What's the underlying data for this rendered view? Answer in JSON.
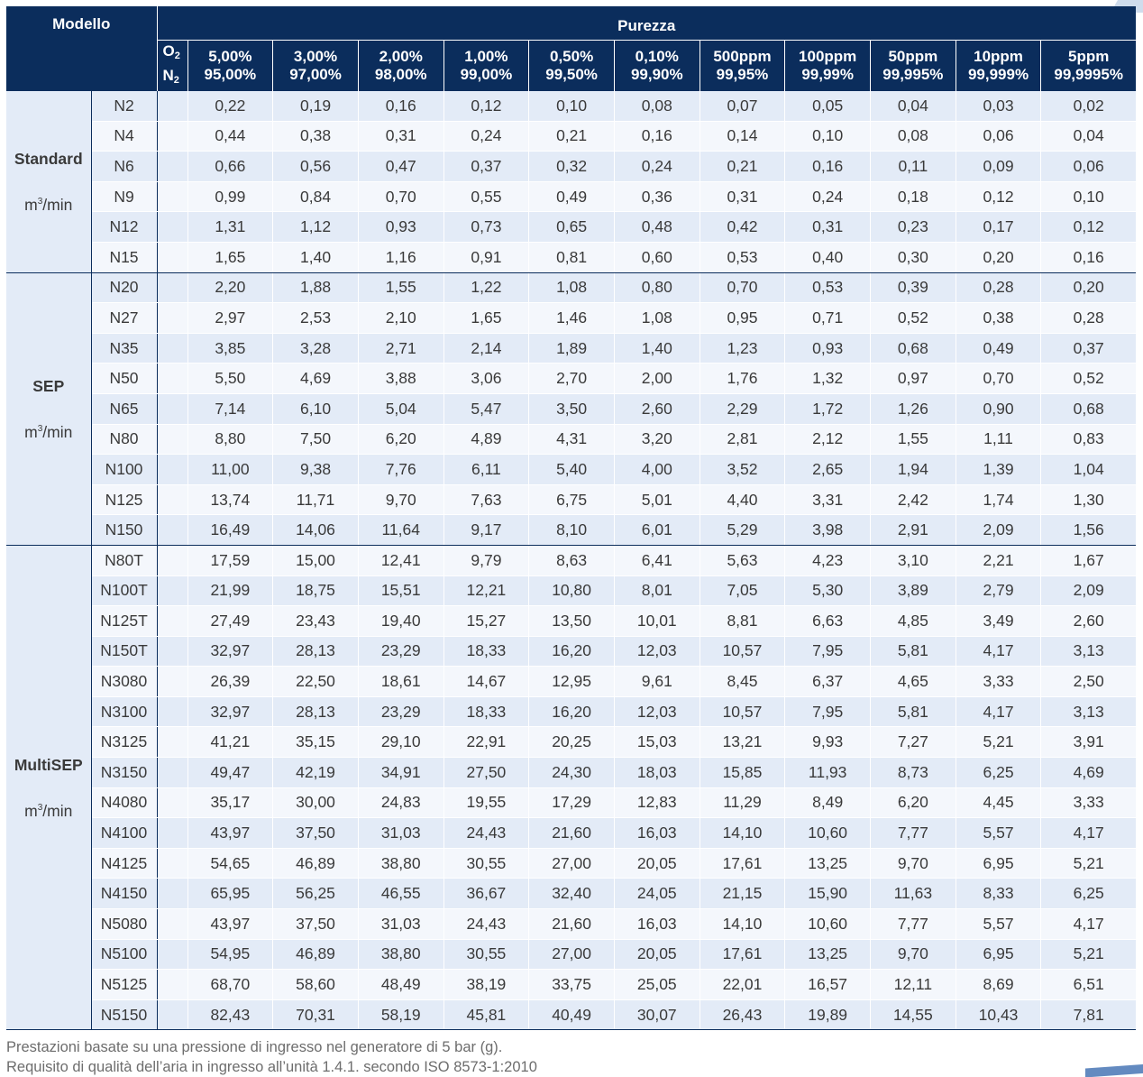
{
  "header": {
    "modello": "Modello",
    "purezza": "Purezza",
    "o2_label": "O",
    "o2_sub": "2",
    "n2_label": "N",
    "n2_sub": "2",
    "columns": [
      {
        "top": "5,00%",
        "bottom": "95,00%"
      },
      {
        "top": "3,00%",
        "bottom": "97,00%"
      },
      {
        "top": "2,00%",
        "bottom": "98,00%"
      },
      {
        "top": "1,00%",
        "bottom": "99,00%"
      },
      {
        "top": "0,50%",
        "bottom": "99,50%"
      },
      {
        "top": "0,10%",
        "bottom": "99,90%"
      },
      {
        "top": "500ppm",
        "bottom": "99,95%"
      },
      {
        "top": "100ppm",
        "bottom": "99,99%"
      },
      {
        "top": "50ppm",
        "bottom": "99,995%"
      },
      {
        "top": "10ppm",
        "bottom": "99,999%"
      },
      {
        "top": "5ppm",
        "bottom": "99,9995%"
      }
    ]
  },
  "groups": [
    {
      "name": "Standard",
      "unit_prefix": "m",
      "unit_sup": "3",
      "unit_suffix": "/min",
      "rows": [
        {
          "model": "N2",
          "values": [
            "0,22",
            "0,19",
            "0,16",
            "0,12",
            "0,10",
            "0,08",
            "0,07",
            "0,05",
            "0,04",
            "0,03",
            "0,02"
          ]
        },
        {
          "model": "N4",
          "values": [
            "0,44",
            "0,38",
            "0,31",
            "0,24",
            "0,21",
            "0,16",
            "0,14",
            "0,10",
            "0,08",
            "0,06",
            "0,04"
          ]
        },
        {
          "model": "N6",
          "values": [
            "0,66",
            "0,56",
            "0,47",
            "0,37",
            "0,32",
            "0,24",
            "0,21",
            "0,16",
            "0,11",
            "0,09",
            "0,06"
          ]
        },
        {
          "model": "N9",
          "values": [
            "0,99",
            "0,84",
            "0,70",
            "0,55",
            "0,49",
            "0,36",
            "0,31",
            "0,24",
            "0,18",
            "0,12",
            "0,10"
          ]
        },
        {
          "model": "N12",
          "values": [
            "1,31",
            "1,12",
            "0,93",
            "0,73",
            "0,65",
            "0,48",
            "0,42",
            "0,31",
            "0,23",
            "0,17",
            "0,12"
          ]
        },
        {
          "model": "N15",
          "values": [
            "1,65",
            "1,40",
            "1,16",
            "0,91",
            "0,81",
            "0,60",
            "0,53",
            "0,40",
            "0,30",
            "0,20",
            "0,16"
          ]
        }
      ]
    },
    {
      "name": "SEP",
      "unit_prefix": "m",
      "unit_sup": "3",
      "unit_suffix": "/min",
      "rows": [
        {
          "model": "N20",
          "values": [
            "2,20",
            "1,88",
            "1,55",
            "1,22",
            "1,08",
            "0,80",
            "0,70",
            "0,53",
            "0,39",
            "0,28",
            "0,20"
          ]
        },
        {
          "model": "N27",
          "values": [
            "2,97",
            "2,53",
            "2,10",
            "1,65",
            "1,46",
            "1,08",
            "0,95",
            "0,71",
            "0,52",
            "0,38",
            "0,28"
          ]
        },
        {
          "model": "N35",
          "values": [
            "3,85",
            "3,28",
            "2,71",
            "2,14",
            "1,89",
            "1,40",
            "1,23",
            "0,93",
            "0,68",
            "0,49",
            "0,37"
          ]
        },
        {
          "model": "N50",
          "values": [
            "5,50",
            "4,69",
            "3,88",
            "3,06",
            "2,70",
            "2,00",
            "1,76",
            "1,32",
            "0,97",
            "0,70",
            "0,52"
          ]
        },
        {
          "model": "N65",
          "values": [
            "7,14",
            "6,10",
            "5,04",
            "5,47",
            "3,50",
            "2,60",
            "2,29",
            "1,72",
            "1,26",
            "0,90",
            "0,68"
          ]
        },
        {
          "model": "N80",
          "values": [
            "8,80",
            "7,50",
            "6,20",
            "4,89",
            "4,31",
            "3,20",
            "2,81",
            "2,12",
            "1,55",
            "1,11",
            "0,83"
          ]
        },
        {
          "model": "N100",
          "values": [
            "11,00",
            "9,38",
            "7,76",
            "6,11",
            "5,40",
            "4,00",
            "3,52",
            "2,65",
            "1,94",
            "1,39",
            "1,04"
          ]
        },
        {
          "model": "N125",
          "values": [
            "13,74",
            "11,71",
            "9,70",
            "7,63",
            "6,75",
            "5,01",
            "4,40",
            "3,31",
            "2,42",
            "1,74",
            "1,30"
          ]
        },
        {
          "model": "N150",
          "values": [
            "16,49",
            "14,06",
            "11,64",
            "9,17",
            "8,10",
            "6,01",
            "5,29",
            "3,98",
            "2,91",
            "2,09",
            "1,56"
          ]
        }
      ]
    },
    {
      "name": "MultiSEP",
      "unit_prefix": "m",
      "unit_sup": "3",
      "unit_suffix": "/min",
      "rows": [
        {
          "model": "N80T",
          "values": [
            "17,59",
            "15,00",
            "12,41",
            "9,79",
            "8,63",
            "6,41",
            "5,63",
            "4,23",
            "3,10",
            "2,21",
            "1,67"
          ]
        },
        {
          "model": "N100T",
          "values": [
            "21,99",
            "18,75",
            "15,51",
            "12,21",
            "10,80",
            "8,01",
            "7,05",
            "5,30",
            "3,89",
            "2,79",
            "2,09"
          ]
        },
        {
          "model": "N125T",
          "values": [
            "27,49",
            "23,43",
            "19,40",
            "15,27",
            "13,50",
            "10,01",
            "8,81",
            "6,63",
            "4,85",
            "3,49",
            "2,60"
          ]
        },
        {
          "model": "N150T",
          "values": [
            "32,97",
            "28,13",
            "23,29",
            "18,33",
            "16,20",
            "12,03",
            "10,57",
            "7,95",
            "5,81",
            "4,17",
            "3,13"
          ]
        },
        {
          "model": "N3080",
          "values": [
            "26,39",
            "22,50",
            "18,61",
            "14,67",
            "12,95",
            "9,61",
            "8,45",
            "6,37",
            "4,65",
            "3,33",
            "2,50"
          ]
        },
        {
          "model": "N3100",
          "values": [
            "32,97",
            "28,13",
            "23,29",
            "18,33",
            "16,20",
            "12,03",
            "10,57",
            "7,95",
            "5,81",
            "4,17",
            "3,13"
          ]
        },
        {
          "model": "N3125",
          "values": [
            "41,21",
            "35,15",
            "29,10",
            "22,91",
            "20,25",
            "15,03",
            "13,21",
            "9,93",
            "7,27",
            "5,21",
            "3,91"
          ]
        },
        {
          "model": "N3150",
          "values": [
            "49,47",
            "42,19",
            "34,91",
            "27,50",
            "24,30",
            "18,03",
            "15,85",
            "11,93",
            "8,73",
            "6,25",
            "4,69"
          ]
        },
        {
          "model": "N4080",
          "values": [
            "35,17",
            "30,00",
            "24,83",
            "19,55",
            "17,29",
            "12,83",
            "11,29",
            "8,49",
            "6,20",
            "4,45",
            "3,33"
          ]
        },
        {
          "model": "N4100",
          "values": [
            "43,97",
            "37,50",
            "31,03",
            "24,43",
            "21,60",
            "16,03",
            "14,10",
            "10,60",
            "7,77",
            "5,57",
            "4,17"
          ]
        },
        {
          "model": "N4125",
          "values": [
            "54,65",
            "46,89",
            "38,80",
            "30,55",
            "27,00",
            "20,05",
            "17,61",
            "13,25",
            "9,70",
            "6,95",
            "5,21"
          ]
        },
        {
          "model": "N4150",
          "values": [
            "65,95",
            "56,25",
            "46,55",
            "36,67",
            "32,40",
            "24,05",
            "21,15",
            "15,90",
            "11,63",
            "8,33",
            "6,25"
          ]
        },
        {
          "model": "N5080",
          "values": [
            "43,97",
            "37,50",
            "31,03",
            "24,43",
            "21,60",
            "16,03",
            "14,10",
            "10,60",
            "7,77",
            "5,57",
            "4,17"
          ]
        },
        {
          "model": "N5100",
          "values": [
            "54,95",
            "46,89",
            "38,80",
            "30,55",
            "27,00",
            "20,05",
            "17,61",
            "13,25",
            "9,70",
            "6,95",
            "5,21"
          ]
        },
        {
          "model": "N5125",
          "values": [
            "68,70",
            "58,60",
            "48,49",
            "38,19",
            "33,75",
            "25,05",
            "22,01",
            "16,57",
            "12,11",
            "8,69",
            "6,51"
          ]
        },
        {
          "model": "N5150",
          "values": [
            "82,43",
            "70,31",
            "58,19",
            "45,81",
            "40,49",
            "30,07",
            "26,43",
            "19,89",
            "14,55",
            "10,43",
            "7,81"
          ]
        }
      ]
    }
  ],
  "notes": [
    "Prestazioni basate su una pressione di ingresso nel generatore di 5 bar (g).",
    "Requisito di qualità dell’aria in ingresso all’unità 1.4.1. secondo ISO 8573-1:2010"
  ],
  "colors": {
    "header_bg": "#0b2d5c",
    "row_odd": "#e3ebf7",
    "row_even": "#f4f7fc"
  }
}
